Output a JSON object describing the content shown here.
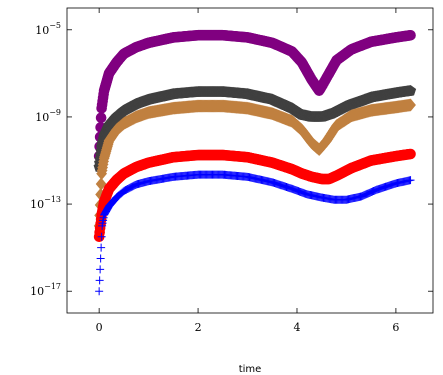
{
  "chart_data": {
    "type": "scatter",
    "title": "",
    "xlabel": "time",
    "ylabel": "",
    "xlim": [
      -0.65,
      6.75
    ],
    "ylim": [
      -18,
      -4
    ],
    "y_scale": "log",
    "y_log_base": 10,
    "grid": false,
    "legend": "none",
    "x_ticks": [
      0,
      2,
      4,
      6
    ],
    "x_tick_labels": [
      "0",
      "2",
      "4",
      "6"
    ],
    "y_ticks": [
      -17,
      -13,
      -9,
      -5
    ],
    "y_tick_labels": [
      {
        "base": "10",
        "exp": "−17"
      },
      {
        "base": "10",
        "exp": "−13"
      },
      {
        "base": "10",
        "exp": "−9"
      },
      {
        "base": "10",
        "exp": "−5"
      }
    ],
    "series": [
      {
        "color": "#800080",
        "marker": "circle",
        "x": [
          0,
          0.05,
          0.1,
          0.2,
          0.35,
          0.5,
          0.75,
          1,
          1.5,
          2,
          2.5,
          3,
          3.5,
          3.9,
          4.1,
          4.3,
          4.45,
          4.6,
          4.8,
          5.1,
          5.5,
          6,
          6.3
        ],
        "y": [
          -10.8,
          -8.6,
          -7.8,
          -7.0,
          -6.5,
          -6.1,
          -5.8,
          -5.6,
          -5.35,
          -5.25,
          -5.25,
          -5.35,
          -5.6,
          -6.0,
          -6.5,
          -7.3,
          -7.8,
          -7.2,
          -6.4,
          -5.9,
          -5.55,
          -5.35,
          -5.25
        ]
      },
      {
        "color": "#404040",
        "marker": "pentagon",
        "x": [
          0,
          0.05,
          0.1,
          0.2,
          0.35,
          0.5,
          0.75,
          1,
          1.5,
          2,
          2.5,
          3,
          3.5,
          3.9,
          4.1,
          4.3,
          4.5,
          4.7,
          5.0,
          5.5,
          6,
          6.3
        ],
        "y": [
          -11.3,
          -10.4,
          -9.9,
          -9.4,
          -9.0,
          -8.7,
          -8.4,
          -8.2,
          -7.95,
          -7.85,
          -7.85,
          -7.95,
          -8.2,
          -8.6,
          -8.9,
          -9.0,
          -9.0,
          -8.85,
          -8.5,
          -8.1,
          -7.9,
          -7.8
        ]
      },
      {
        "color": "#c08040",
        "marker": "diamond",
        "x": [
          0,
          0.05,
          0.1,
          0.2,
          0.35,
          0.5,
          0.75,
          1,
          1.5,
          2,
          2.5,
          3,
          3.5,
          3.9,
          4.1,
          4.3,
          4.45,
          4.6,
          4.8,
          5.1,
          5.5,
          6,
          6.3
        ],
        "y": [
          -14.0,
          -11.6,
          -10.9,
          -10.1,
          -9.6,
          -9.3,
          -9.0,
          -8.8,
          -8.6,
          -8.5,
          -8.5,
          -8.6,
          -8.85,
          -9.2,
          -9.6,
          -10.2,
          -10.5,
          -10.1,
          -9.4,
          -8.95,
          -8.7,
          -8.55,
          -8.45
        ]
      },
      {
        "color": "#ff0000",
        "marker": "circle",
        "x": [
          0,
          0.05,
          0.1,
          0.2,
          0.35,
          0.5,
          0.75,
          1,
          1.5,
          2,
          2.5,
          3,
          3.5,
          3.9,
          4.1,
          4.3,
          4.5,
          4.65,
          4.8,
          5.1,
          5.5,
          6,
          6.3
        ],
        "y": [
          -14.5,
          -13.5,
          -12.9,
          -12.3,
          -11.9,
          -11.6,
          -11.3,
          -11.1,
          -10.85,
          -10.75,
          -10.75,
          -10.85,
          -11.1,
          -11.4,
          -11.6,
          -11.75,
          -11.85,
          -11.85,
          -11.7,
          -11.35,
          -11.0,
          -10.8,
          -10.7
        ]
      },
      {
        "color": "#0000ff",
        "marker": "plus",
        "x": [
          0,
          0.03,
          0.06,
          0.1,
          0.2,
          0.35,
          0.5,
          0.75,
          1,
          1.5,
          2,
          2.5,
          3,
          3.5,
          3.9,
          4.2,
          4.5,
          4.75,
          5.0,
          5.3,
          5.6,
          6,
          6.3
        ],
        "y": [
          -17.0,
          -15.5,
          -14.0,
          -13.5,
          -13.1,
          -12.7,
          -12.4,
          -12.1,
          -11.95,
          -11.75,
          -11.65,
          -11.65,
          -11.75,
          -12.0,
          -12.3,
          -12.55,
          -12.7,
          -12.8,
          -12.8,
          -12.65,
          -12.35,
          -12.05,
          -11.9
        ]
      }
    ]
  }
}
